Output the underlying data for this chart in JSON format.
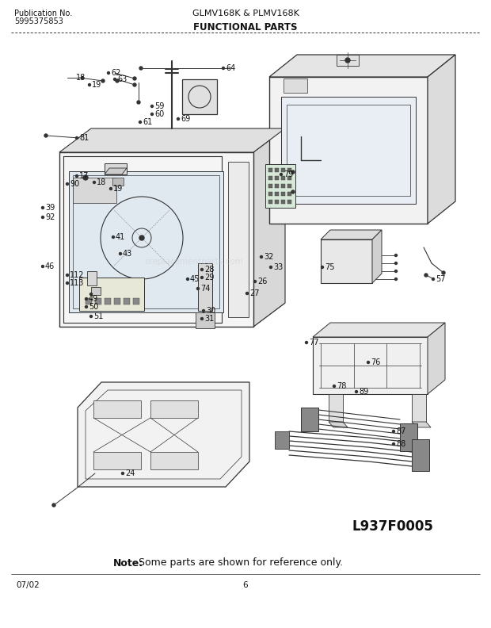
{
  "title_center": "GLMV168K & PLMV168K",
  "pub_no_label": "Publication No.",
  "pub_no": "5995375853",
  "section_title": "FUNCTIONAL PARTS",
  "diagram_label": "L937F0005",
  "note_bold": "Note:",
  "note_text": "Some parts are shown for reference only.",
  "date_code": "07/02",
  "page_num": "6",
  "watermark": "ereplacementparts.com",
  "bg_color": "#ffffff",
  "lc": "#333333",
  "tc": "#111111",
  "fig_width": 6.2,
  "fig_height": 7.92,
  "dpi": 100,
  "parts": [
    [
      108,
      694,
      "18",
      "right"
    ],
    [
      116,
      685,
      "19",
      "left"
    ],
    [
      140,
      700,
      "62",
      "left"
    ],
    [
      148,
      692,
      "63",
      "left"
    ],
    [
      285,
      706,
      "64",
      "left"
    ],
    [
      195,
      658,
      "59",
      "left"
    ],
    [
      195,
      648,
      "60",
      "left"
    ],
    [
      180,
      638,
      "61",
      "left"
    ],
    [
      228,
      642,
      "69",
      "left"
    ],
    [
      100,
      618,
      "81",
      "left"
    ],
    [
      57,
      530,
      "39",
      "left"
    ],
    [
      57,
      518,
      "92",
      "left"
    ],
    [
      146,
      493,
      "41",
      "left"
    ],
    [
      155,
      472,
      "43",
      "left"
    ],
    [
      57,
      456,
      "46",
      "left"
    ],
    [
      88,
      445,
      "112",
      "left"
    ],
    [
      88,
      435,
      "113",
      "left"
    ],
    [
      112,
      415,
      "49",
      "left"
    ],
    [
      112,
      405,
      "50",
      "left"
    ],
    [
      118,
      393,
      "51",
      "left"
    ],
    [
      240,
      440,
      "45",
      "left"
    ],
    [
      253,
      428,
      "74",
      "left"
    ],
    [
      258,
      452,
      "28",
      "left"
    ],
    [
      258,
      442,
      "29",
      "left"
    ],
    [
      260,
      400,
      "30",
      "left"
    ],
    [
      258,
      390,
      "31",
      "left"
    ],
    [
      333,
      468,
      "32",
      "left"
    ],
    [
      345,
      455,
      "33",
      "left"
    ],
    [
      325,
      437,
      "26",
      "left"
    ],
    [
      315,
      422,
      "27",
      "left"
    ],
    [
      410,
      455,
      "75",
      "left"
    ],
    [
      468,
      335,
      "76",
      "left"
    ],
    [
      390,
      360,
      "77",
      "left"
    ],
    [
      425,
      305,
      "78",
      "left"
    ],
    [
      453,
      298,
      "89",
      "left"
    ],
    [
      358,
      572,
      "79",
      "left"
    ],
    [
      550,
      440,
      "57",
      "left"
    ],
    [
      500,
      248,
      "87",
      "left"
    ],
    [
      500,
      232,
      "88",
      "left"
    ],
    [
      158,
      195,
      "24",
      "left"
    ],
    [
      88,
      560,
      "90",
      "left"
    ],
    [
      100,
      570,
      "17",
      "left"
    ],
    [
      122,
      562,
      "18",
      "left"
    ],
    [
      143,
      554,
      "19",
      "left"
    ]
  ]
}
